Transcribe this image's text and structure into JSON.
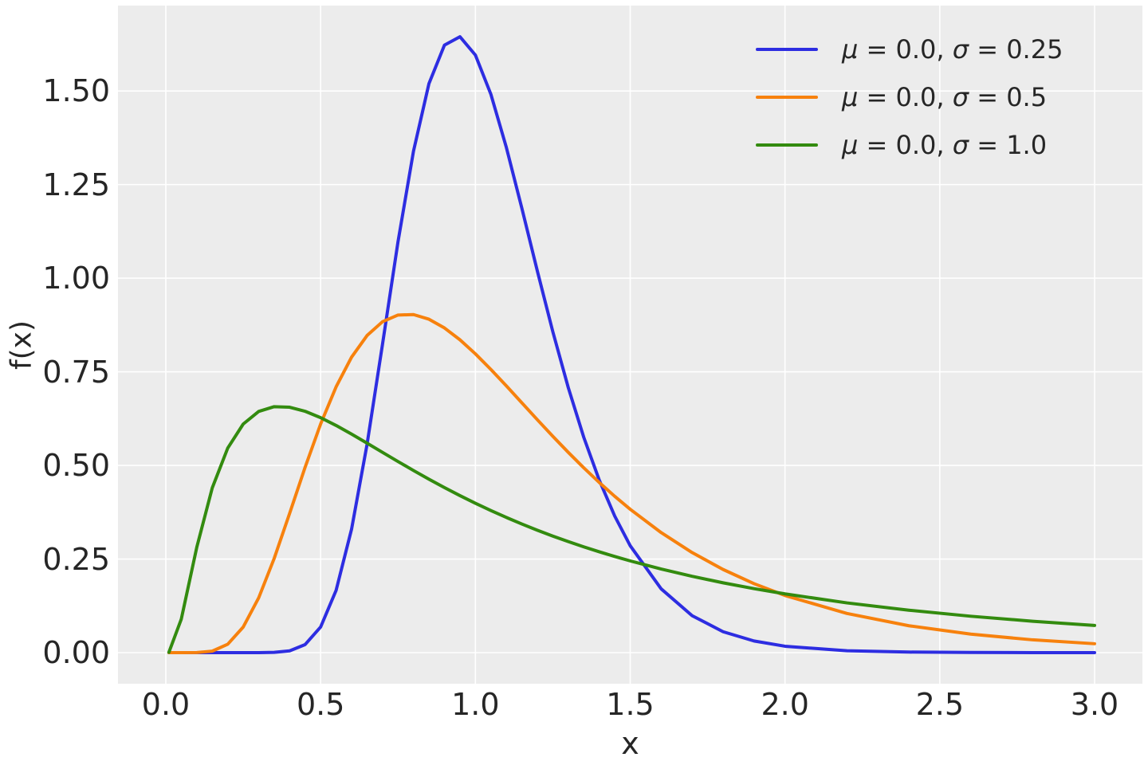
{
  "chart_data": {
    "type": "line",
    "title": "",
    "xlabel": "x",
    "ylabel": "f(x)",
    "xlim": [
      -0.1545,
      3.1545
    ],
    "ylim": [
      -0.083,
      1.728
    ],
    "grid": true,
    "legend_position": "upper right",
    "styles": {
      "plot_background": "#ececec",
      "grid_color": "#ffffff",
      "text_color": "#262626"
    },
    "xticks": {
      "values": [
        0.0,
        0.5,
        1.0,
        1.5,
        2.0,
        2.5,
        3.0
      ],
      "labels": [
        "0.0",
        "0.5",
        "1.0",
        "1.5",
        "2.0",
        "2.5",
        "3.0"
      ]
    },
    "yticks": {
      "values": [
        0.0,
        0.25,
        0.5,
        0.75,
        1.0,
        1.25,
        1.5
      ],
      "labels": [
        "0.00",
        "0.25",
        "0.50",
        "0.75",
        "1.00",
        "1.25",
        "1.50"
      ]
    },
    "x": [
      0.01,
      0.05,
      0.1,
      0.15,
      0.2,
      0.25,
      0.3,
      0.35,
      0.4,
      0.45,
      0.5,
      0.55,
      0.6,
      0.65,
      0.7,
      0.75,
      0.8,
      0.85,
      0.9,
      0.95,
      1.0,
      1.05,
      1.1,
      1.15,
      1.2,
      1.25,
      1.3,
      1.35,
      1.4,
      1.45,
      1.5,
      1.6,
      1.7,
      1.8,
      1.9,
      2.0,
      2.2,
      2.4,
      2.6,
      2.8,
      3.0
    ],
    "series": [
      {
        "name": "μ = 0.0, σ = 0.25",
        "mu": 0.0,
        "sigma": 0.25,
        "color": "#2d2de1",
        "values": [
          0.0,
          0.0,
          0.0,
          0.0,
          0.0,
          0.0,
          0.0,
          0.0007,
          0.0048,
          0.0216,
          0.0684,
          0.1663,
          0.3298,
          0.5563,
          0.8239,
          1.0974,
          1.3393,
          1.5198,
          1.6224,
          1.6448,
          1.5958,
          1.4911,
          1.349,
          1.1869,
          1.0193,
          0.8572,
          0.7077,
          0.5751,
          0.4608,
          0.3647,
          0.2855,
          0.1704,
          0.0987,
          0.0559,
          0.0311,
          0.0171,
          0.005,
          0.0015,
          0.0004,
          0.0001,
          0.0
        ]
      },
      {
        "name": "μ = 0.0, σ = 0.5",
        "mu": 0.0,
        "sigma": 0.5,
        "color": "#f7810d",
        "values": [
          0.0,
          0.0,
          0.0002,
          0.004,
          0.0224,
          0.0684,
          0.1464,
          0.2515,
          0.3721,
          0.4953,
          0.6105,
          0.7098,
          0.7891,
          0.8469,
          0.8838,
          0.9016,
          0.9028,
          0.8904,
          0.8671,
          0.8355,
          0.7979,
          0.7563,
          0.7123,
          0.6672,
          0.6221,
          0.5778,
          0.5348,
          0.4936,
          0.4544,
          0.4175,
          0.3829,
          0.3206,
          0.2673,
          0.2221,
          0.1842,
          0.1526,
          0.1046,
          0.0718,
          0.0494,
          0.0342,
          0.0238
        ]
      },
      {
        "name": "μ = 0.0, σ = 1.0",
        "mu": 0.0,
        "sigma": 1.0,
        "color": "#338b0f",
        "values": [
          0.001,
          0.0896,
          0.2814,
          0.44,
          0.5463,
          0.6105,
          0.6442,
          0.6569,
          0.6554,
          0.6445,
          0.6275,
          0.6067,
          0.5836,
          0.5594,
          0.5348,
          0.5104,
          0.4864,
          0.4632,
          0.4408,
          0.4194,
          0.3989,
          0.3795,
          0.361,
          0.3435,
          0.327,
          0.3113,
          0.2965,
          0.2825,
          0.2693,
          0.2568,
          0.245,
          0.2233,
          0.2039,
          0.1865,
          0.1709,
          0.1569,
          0.1329,
          0.1133,
          0.0972,
          0.0839,
          0.0727
        ]
      }
    ]
  }
}
